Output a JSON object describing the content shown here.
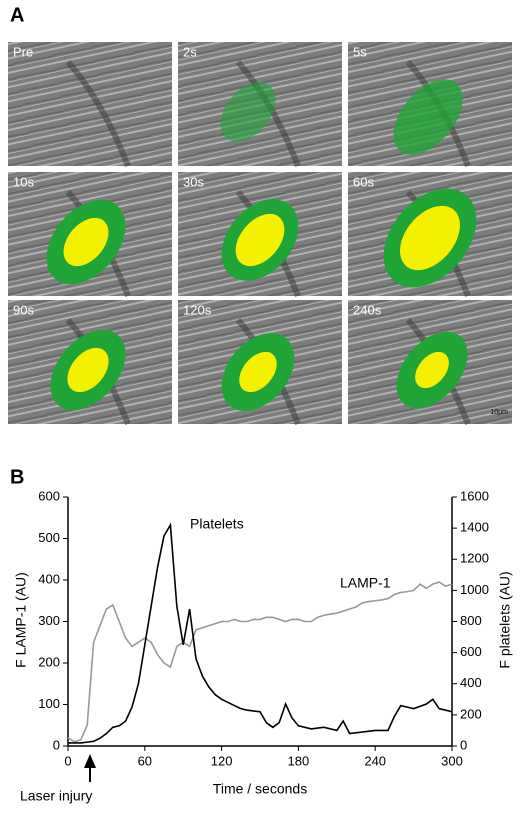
{
  "panel_a": {
    "label": "A",
    "images": [
      "Pre",
      "2s",
      "5s",
      "10s",
      "30s",
      "60s",
      "90s",
      "120s",
      "240s"
    ],
    "scale_bar": "10µm"
  },
  "chart_data": {
    "type": "line",
    "label": "B",
    "x_label": "Time / seconds",
    "y_label": "F LAMP-1 (AU)",
    "y2_label": "F platelets (AU)",
    "annotations": {
      "platelets": "Platelets",
      "lamp1": "LAMP-1",
      "injury": "Laser injury"
    },
    "x": [
      0,
      5,
      10,
      15,
      20,
      25,
      30,
      35,
      40,
      45,
      50,
      55,
      60,
      65,
      70,
      75,
      80,
      85,
      90,
      95,
      100,
      105,
      110,
      115,
      120,
      125,
      130,
      135,
      140,
      145,
      150,
      155,
      160,
      165,
      170,
      175,
      180,
      185,
      190,
      195,
      200,
      205,
      210,
      215,
      220,
      225,
      230,
      235,
      240,
      245,
      250,
      255,
      260,
      265,
      270,
      275,
      280,
      285,
      290,
      295,
      300
    ],
    "series": [
      {
        "name": "LAMP-1",
        "color": "#999999",
        "axis": "y",
        "values": [
          20,
          10,
          15,
          50,
          250,
          290,
          330,
          340,
          300,
          260,
          240,
          250,
          260,
          250,
          220,
          200,
          190,
          240,
          250,
          240,
          280,
          285,
          290,
          295,
          300,
          300,
          305,
          300,
          300,
          305,
          305,
          310,
          310,
          305,
          300,
          305,
          305,
          300,
          300,
          310,
          315,
          318,
          320,
          325,
          330,
          335,
          345,
          348,
          350,
          352,
          355,
          365,
          370,
          372,
          375,
          390,
          380,
          390,
          395,
          385,
          390
        ]
      },
      {
        "name": "Platelets",
        "color": "#000000",
        "axis": "y2",
        "values": [
          20,
          20,
          20,
          25,
          30,
          50,
          80,
          120,
          130,
          160,
          250,
          400,
          650,
          900,
          1150,
          1350,
          1420,
          900,
          650,
          880,
          560,
          450,
          380,
          330,
          300,
          280,
          260,
          240,
          230,
          225,
          220,
          150,
          120,
          150,
          270,
          180,
          130,
          120,
          110,
          115,
          120,
          110,
          100,
          160,
          80,
          85,
          90,
          95,
          100,
          100,
          100,
          190,
          260,
          250,
          240,
          255,
          270,
          300,
          240,
          230,
          220
        ]
      }
    ],
    "xlim": [
      0,
      300
    ],
    "xticks": [
      0,
      60,
      120,
      180,
      240,
      300
    ],
    "ylim": [
      0,
      600
    ],
    "yticks": [
      0,
      100,
      200,
      300,
      400,
      500,
      600
    ],
    "y2lim": [
      0,
      1600
    ],
    "y2ticks": [
      0,
      200,
      400,
      600,
      800,
      1000,
      1200,
      1400,
      1600
    ]
  }
}
